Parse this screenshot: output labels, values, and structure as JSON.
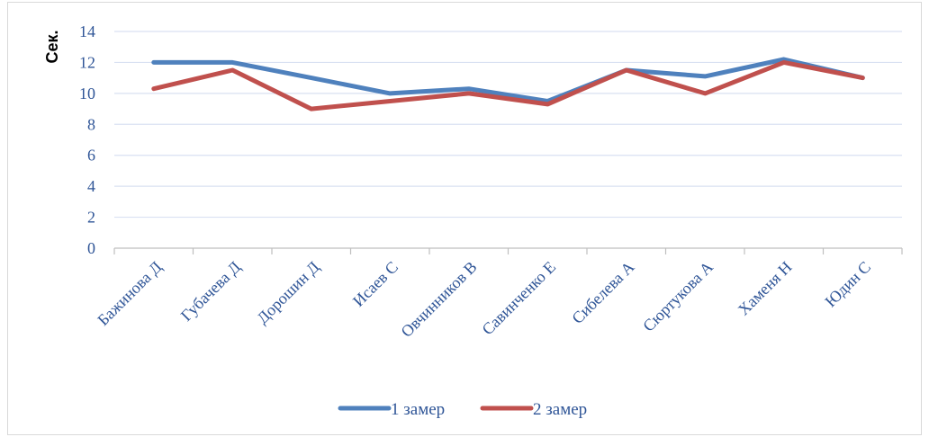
{
  "chart_data": {
    "type": "line",
    "title": "",
    "xlabel": "",
    "ylabel": "Сек.",
    "ylim": [
      0,
      14
    ],
    "yticks": [
      0,
      2,
      4,
      6,
      8,
      10,
      12,
      14
    ],
    "grid": true,
    "legend_position": "bottom",
    "categories": [
      "Бажинова Д",
      "Губачева Д",
      "Дорошин Д",
      "Исаев С",
      "Овчинников В",
      "Савинченко Е",
      "Сибелева А",
      "Сюртукова А",
      "Хаменя Н",
      "Юдин С"
    ],
    "series": [
      {
        "name": "1 замер",
        "color": "#4f81bd",
        "values": [
          12.0,
          12.0,
          11.0,
          10.0,
          10.3,
          9.5,
          11.5,
          11.1,
          12.2,
          11.0
        ]
      },
      {
        "name": "2 замер",
        "color": "#c0504d",
        "values": [
          10.3,
          11.5,
          9.0,
          9.5,
          10.0,
          9.3,
          11.5,
          10.0,
          12.0,
          11.0
        ]
      }
    ]
  }
}
